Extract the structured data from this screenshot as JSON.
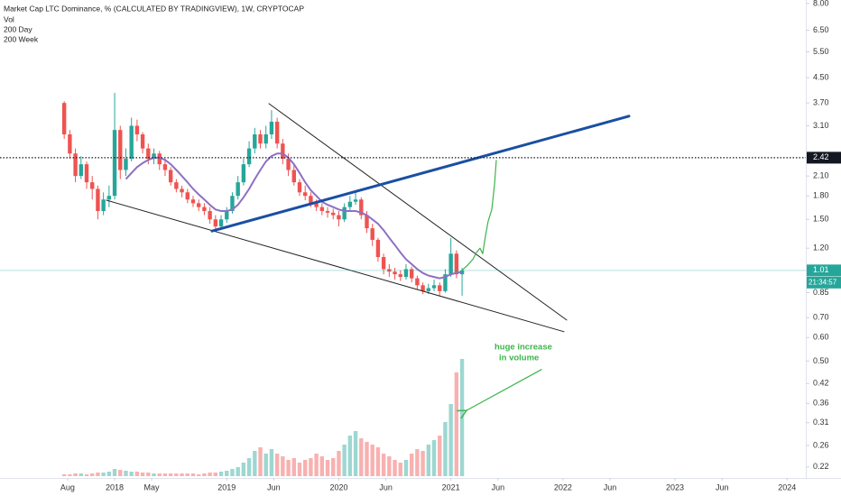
{
  "chart_data": {
    "type": "candlestick",
    "title": "Market Cap LTC Dominance, % (CALCULATED BY TRADINGVIEW), 1W, CRYPTOCAP",
    "legend": [
      "Vol",
      "200 Day",
      "200 Week"
    ],
    "log_scale": true,
    "grid": false,
    "up_color": "#26a69a",
    "down_color": "#ef5350",
    "x": [
      2017.55,
      2017.6,
      2017.65,
      2017.7,
      2017.75,
      2017.8,
      2017.85,
      2017.9,
      2017.95,
      2018.0,
      2018.05,
      2018.1,
      2018.15,
      2018.2,
      2018.25,
      2018.3,
      2018.35,
      2018.4,
      2018.45,
      2018.5,
      2018.55,
      2018.6,
      2018.65,
      2018.7,
      2018.75,
      2018.8,
      2018.85,
      2018.9,
      2018.95,
      2019.0,
      2019.05,
      2019.1,
      2019.15,
      2019.2,
      2019.25,
      2019.3,
      2019.35,
      2019.4,
      2019.45,
      2019.5,
      2019.55,
      2019.6,
      2019.65,
      2019.7,
      2019.75,
      2019.8,
      2019.85,
      2019.9,
      2019.95,
      2020.0,
      2020.05,
      2020.1,
      2020.15,
      2020.2,
      2020.25,
      2020.3,
      2020.35,
      2020.4,
      2020.45,
      2020.5,
      2020.55,
      2020.6,
      2020.65,
      2020.7,
      2020.75,
      2020.8,
      2020.85,
      2020.9,
      2020.95,
      2021.0,
      2021.05,
      2021.1
    ],
    "open": [
      3.7,
      2.9,
      2.5,
      2.1,
      2.3,
      2.0,
      1.9,
      1.6,
      1.75,
      1.8,
      3.0,
      2.2,
      2.4,
      3.1,
      2.9,
      2.6,
      2.4,
      2.5,
      2.3,
      2.2,
      2.0,
      1.9,
      1.85,
      1.75,
      1.7,
      1.65,
      1.6,
      1.5,
      1.42,
      1.5,
      1.6,
      1.8,
      2.0,
      2.3,
      2.6,
      2.9,
      2.7,
      2.9,
      3.2,
      2.7,
      2.4,
      2.2,
      2.0,
      1.85,
      1.8,
      1.7,
      1.65,
      1.6,
      1.58,
      1.55,
      1.5,
      1.65,
      1.72,
      1.75,
      1.55,
      1.4,
      1.28,
      1.12,
      1.02,
      1.0,
      0.98,
      0.96,
      1.02,
      0.95,
      0.9,
      0.86,
      0.88,
      0.9,
      0.86,
      0.98,
      1.15,
      0.98
    ],
    "high": [
      3.75,
      3.0,
      2.6,
      2.45,
      2.35,
      2.1,
      1.95,
      1.85,
      1.95,
      4.0,
      3.1,
      2.6,
      3.3,
      3.25,
      2.95,
      2.7,
      2.6,
      2.55,
      2.4,
      2.25,
      2.05,
      1.95,
      1.9,
      1.8,
      1.75,
      1.7,
      1.65,
      1.55,
      1.55,
      1.65,
      1.85,
      2.1,
      2.4,
      2.75,
      3.05,
      3.0,
      3.1,
      3.5,
      3.3,
      2.8,
      2.5,
      2.3,
      2.05,
      1.95,
      1.85,
      1.75,
      1.7,
      1.65,
      1.63,
      1.6,
      1.7,
      1.8,
      1.85,
      1.78,
      1.6,
      1.45,
      1.3,
      1.15,
      1.06,
      1.03,
      1.01,
      1.06,
      1.04,
      0.97,
      0.92,
      0.91,
      0.94,
      0.92,
      1.02,
      1.3,
      1.18,
      1.03
    ],
    "low": [
      2.8,
      2.4,
      2.0,
      2.05,
      1.9,
      1.75,
      1.5,
      1.55,
      1.65,
      1.75,
      2.05,
      2.1,
      2.35,
      2.75,
      2.5,
      2.3,
      2.3,
      2.2,
      2.1,
      1.95,
      1.85,
      1.78,
      1.7,
      1.65,
      1.6,
      1.55,
      1.45,
      1.38,
      1.38,
      1.46,
      1.57,
      1.75,
      1.95,
      2.25,
      2.5,
      2.6,
      2.6,
      2.8,
      2.6,
      2.3,
      2.1,
      1.95,
      1.8,
      1.74,
      1.65,
      1.6,
      1.55,
      1.52,
      1.5,
      1.42,
      1.47,
      1.6,
      1.68,
      1.5,
      1.35,
      1.22,
      1.08,
      0.98,
      0.96,
      0.94,
      0.93,
      0.94,
      0.92,
      0.87,
      0.84,
      0.84,
      0.86,
      0.83,
      0.85,
      0.96,
      0.95,
      0.83
    ],
    "close": [
      2.9,
      2.5,
      2.1,
      2.3,
      2.0,
      1.9,
      1.6,
      1.75,
      1.8,
      3.0,
      2.2,
      2.4,
      3.1,
      2.9,
      2.6,
      2.4,
      2.5,
      2.3,
      2.2,
      2.0,
      1.9,
      1.85,
      1.75,
      1.7,
      1.65,
      1.6,
      1.5,
      1.42,
      1.5,
      1.6,
      1.8,
      2.0,
      2.3,
      2.6,
      2.9,
      2.7,
      2.9,
      3.2,
      2.7,
      2.4,
      2.2,
      2.0,
      1.85,
      1.8,
      1.7,
      1.65,
      1.6,
      1.58,
      1.55,
      1.5,
      1.65,
      1.72,
      1.75,
      1.55,
      1.4,
      1.28,
      1.12,
      1.02,
      1.0,
      0.98,
      0.96,
      1.02,
      0.95,
      0.9,
      0.86,
      0.88,
      0.9,
      0.86,
      0.98,
      1.15,
      0.98,
      1.01
    ],
    "volume": [
      2,
      2,
      3,
      3,
      2,
      3,
      4,
      4,
      5,
      8,
      7,
      6,
      5,
      5,
      4,
      4,
      3,
      3,
      3,
      3,
      3,
      3,
      3,
      3,
      2,
      3,
      4,
      4,
      5,
      6,
      8,
      10,
      15,
      20,
      28,
      32,
      25,
      30,
      25,
      22,
      18,
      20,
      15,
      18,
      20,
      25,
      22,
      18,
      20,
      28,
      35,
      45,
      50,
      42,
      38,
      35,
      32,
      25,
      22,
      18,
      15,
      18,
      25,
      30,
      28,
      35,
      40,
      45,
      60,
      80,
      115,
      130
    ],
    "series": [
      {
        "name": "200 Day",
        "color": "#8e6fc4",
        "values": [
          null,
          null,
          null,
          null,
          null,
          null,
          null,
          null,
          null,
          null,
          null,
          2.05,
          2.15,
          2.25,
          2.32,
          2.38,
          2.42,
          2.42,
          2.38,
          2.3,
          2.2,
          2.1,
          2.0,
          1.9,
          1.82,
          1.75,
          1.68,
          1.62,
          1.6,
          1.6,
          1.62,
          1.68,
          1.78,
          1.9,
          2.05,
          2.2,
          2.35,
          2.45,
          2.5,
          2.5,
          2.42,
          2.3,
          2.15,
          2.0,
          1.88,
          1.8,
          1.72,
          1.68,
          1.65,
          1.62,
          1.6,
          1.6,
          1.6,
          1.58,
          1.55,
          1.5,
          1.45,
          1.38,
          1.3,
          1.23,
          1.16,
          1.1,
          1.06,
          1.02,
          0.99,
          0.97,
          0.96,
          0.95,
          0.96,
          0.98,
          0.99,
          1.0
        ]
      }
    ],
    "xlim": [
      2016.977,
      2024.167
    ],
    "xticks": [
      {
        "value": 2017.58,
        "label": "Aug"
      },
      {
        "value": 2018,
        "label": "2018"
      },
      {
        "value": 2018.33,
        "label": "May"
      },
      {
        "value": 2019,
        "label": "2019"
      },
      {
        "value": 2019.42,
        "label": "Jun"
      },
      {
        "value": 2020,
        "label": "2020"
      },
      {
        "value": 2020.42,
        "label": "Jun"
      },
      {
        "value": 2021,
        "label": "2021"
      },
      {
        "value": 2021.42,
        "label": "Jun"
      },
      {
        "value": 2022,
        "label": "2022"
      },
      {
        "value": 2022.42,
        "label": "Jun"
      },
      {
        "value": 2023,
        "label": "2023"
      },
      {
        "value": 2023.42,
        "label": "Jun"
      },
      {
        "value": 2024,
        "label": "2024"
      }
    ],
    "ylim": [
      0.202,
      8.22
    ],
    "yticks": [
      {
        "value": 8,
        "label": "8.00"
      },
      {
        "value": 6.5,
        "label": "6.50"
      },
      {
        "value": 5.5,
        "label": "5.50"
      },
      {
        "value": 4.5,
        "label": "4.50"
      },
      {
        "value": 3.7,
        "label": "3.70"
      },
      {
        "value": 3.1,
        "label": "3.10"
      },
      {
        "value": 2.1,
        "label": "2.10"
      },
      {
        "value": 1.8,
        "label": "1.80"
      },
      {
        "value": 1.5,
        "label": "1.50"
      },
      {
        "value": 1.2,
        "label": "1.20"
      },
      0.85,
      {
        "value": 0.7,
        "label": "0.70"
      },
      {
        "value": 0.6,
        "label": "0.60"
      },
      {
        "value": 0.5,
        "label": "0.50"
      },
      0.42,
      0.36,
      0.31,
      0.26,
      0.22
    ],
    "price_lines": [
      {
        "value": 2.42,
        "color": "#131722",
        "dotted": true
      },
      {
        "value": 1.01,
        "color": "#26a69a",
        "dotted": false
      }
    ],
    "countdown": "21:34:57",
    "drawings": [
      {
        "color": "#222222",
        "line_width": 1,
        "points": [
          [
            2019.376,
            3.68
          ],
          [
            2022.033,
            0.687
          ]
        ]
      },
      {
        "color": "#222222",
        "line_width": 1,
        "points": [
          [
            2017.927,
            1.74
          ],
          [
            2022.009,
            0.628
          ]
        ]
      },
      {
        "color": "#1a4fa3",
        "line_width": 3,
        "points": [
          [
            2018.869,
            1.37
          ],
          [
            2022.589,
            3.34
          ]
        ]
      },
      {
        "color": "#3cb44b",
        "line_width": 1.2,
        "points": [
          [
            2021.099,
            1.01
          ],
          [
            2021.147,
            1.05
          ],
          [
            2021.196,
            1.1
          ],
          [
            2021.228,
            1.16
          ],
          [
            2021.26,
            1.2
          ],
          [
            2021.284,
            1.15
          ],
          [
            2021.309,
            1.32
          ],
          [
            2021.333,
            1.48
          ],
          [
            2021.365,
            1.62
          ],
          [
            2021.389,
            1.96
          ],
          [
            2021.405,
            2.37
          ]
        ]
      },
      {
        "color": "#3cb44b",
        "line_width": 1.2,
        "arrow": true,
        "points": [
          [
            2021.808,
            0.468
          ],
          [
            2021.14,
            0.341
          ]
        ]
      }
    ],
    "annotations": [
      "huge increase",
      "in volume"
    ]
  }
}
